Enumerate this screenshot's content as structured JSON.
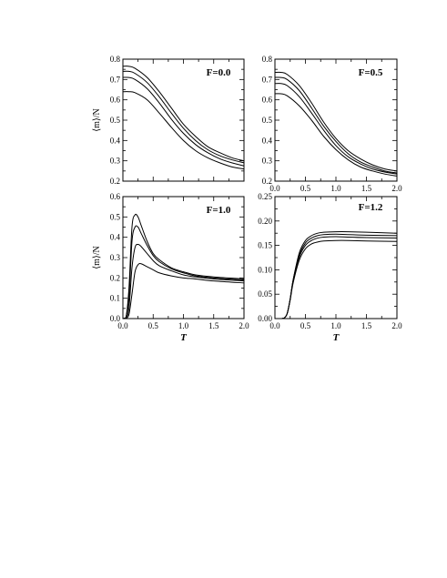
{
  "chart_data": [
    {
      "type": "line",
      "title": "F=0.0",
      "xlabel": "",
      "ylabel": "⟨m⟩/N",
      "xlim": [
        0,
        2
      ],
      "ylim": [
        0.2,
        0.8
      ],
      "xticks": [
        "0.0",
        "0.5",
        "1.0",
        "1.5",
        "2.0"
      ],
      "yticks": [
        "0.2",
        "0.3",
        "0.4",
        "0.5",
        "0.6",
        "0.7",
        "0.8"
      ],
      "show_xticklabels": false,
      "series": [
        {
          "x": [
            0,
            0.1,
            0.2,
            0.4,
            0.6,
            0.8,
            1.0,
            1.2,
            1.4,
            1.6,
            1.8,
            2.0
          ],
          "values": [
            0.765,
            0.765,
            0.755,
            0.71,
            0.64,
            0.56,
            0.48,
            0.42,
            0.37,
            0.34,
            0.315,
            0.3
          ]
        },
        {
          "x": [
            0,
            0.1,
            0.2,
            0.4,
            0.6,
            0.8,
            1.0,
            1.2,
            1.4,
            1.6,
            1.8,
            2.0
          ],
          "values": [
            0.74,
            0.74,
            0.73,
            0.685,
            0.615,
            0.535,
            0.46,
            0.4,
            0.355,
            0.325,
            0.305,
            0.29
          ]
        },
        {
          "x": [
            0,
            0.1,
            0.2,
            0.4,
            0.6,
            0.8,
            1.0,
            1.2,
            1.4,
            1.6,
            1.8,
            2.0
          ],
          "values": [
            0.71,
            0.71,
            0.7,
            0.655,
            0.585,
            0.505,
            0.435,
            0.38,
            0.34,
            0.31,
            0.29,
            0.275
          ]
        },
        {
          "x": [
            0,
            0.1,
            0.2,
            0.4,
            0.6,
            0.8,
            1.0,
            1.2,
            1.4,
            1.6,
            1.8,
            2.0
          ],
          "values": [
            0.64,
            0.64,
            0.635,
            0.6,
            0.535,
            0.465,
            0.4,
            0.35,
            0.315,
            0.29,
            0.27,
            0.26
          ]
        }
      ]
    },
    {
      "type": "line",
      "title": "F=0.5",
      "xlabel": "",
      "ylabel": "",
      "xlim": [
        0,
        2
      ],
      "ylim": [
        0.2,
        0.8
      ],
      "xticks": [
        "0.0",
        "0.5",
        "1.0",
        "1.5",
        "2.0"
      ],
      "yticks": [
        "0.2",
        "0.3",
        "0.4",
        "0.5",
        "0.6",
        "0.7",
        "0.8"
      ],
      "show_xticklabels": true,
      "series": [
        {
          "x": [
            0,
            0.1,
            0.2,
            0.4,
            0.6,
            0.8,
            1.0,
            1.2,
            1.4,
            1.6,
            1.8,
            2.0
          ],
          "values": [
            0.735,
            0.735,
            0.725,
            0.67,
            0.585,
            0.49,
            0.41,
            0.35,
            0.31,
            0.28,
            0.26,
            0.25
          ]
        },
        {
          "x": [
            0,
            0.1,
            0.2,
            0.4,
            0.6,
            0.8,
            1.0,
            1.2,
            1.4,
            1.6,
            1.8,
            2.0
          ],
          "values": [
            0.71,
            0.71,
            0.7,
            0.645,
            0.56,
            0.47,
            0.395,
            0.335,
            0.295,
            0.27,
            0.25,
            0.24
          ]
        },
        {
          "x": [
            0,
            0.1,
            0.2,
            0.4,
            0.6,
            0.8,
            1.0,
            1.2,
            1.4,
            1.6,
            1.8,
            2.0
          ],
          "values": [
            0.68,
            0.68,
            0.67,
            0.615,
            0.535,
            0.45,
            0.375,
            0.32,
            0.285,
            0.26,
            0.245,
            0.235
          ]
        },
        {
          "x": [
            0,
            0.1,
            0.2,
            0.4,
            0.6,
            0.8,
            1.0,
            1.2,
            1.4,
            1.6,
            1.8,
            2.0
          ],
          "values": [
            0.63,
            0.63,
            0.62,
            0.57,
            0.5,
            0.42,
            0.355,
            0.305,
            0.27,
            0.25,
            0.235,
            0.225
          ]
        }
      ]
    },
    {
      "type": "line",
      "title": "F=1.0",
      "xlabel": "T",
      "ylabel": "⟨m⟩/N",
      "xlim": [
        0,
        2
      ],
      "ylim": [
        0,
        0.6
      ],
      "xticks": [
        "0.0",
        "0.5",
        "1.0",
        "1.5",
        "2.0"
      ],
      "yticks": [
        "0.0",
        "0.1",
        "0.2",
        "0.3",
        "0.4",
        "0.5",
        "0.6"
      ],
      "show_xticklabels": true,
      "series": [
        {
          "x": [
            0,
            0.05,
            0.1,
            0.15,
            0.2,
            0.25,
            0.3,
            0.4,
            0.5,
            0.6,
            0.8,
            1.0,
            1.2,
            1.5,
            2.0
          ],
          "values": [
            0,
            0.005,
            0.15,
            0.45,
            0.51,
            0.5,
            0.46,
            0.38,
            0.32,
            0.29,
            0.25,
            0.23,
            0.215,
            0.205,
            0.195
          ]
        },
        {
          "x": [
            0,
            0.05,
            0.1,
            0.15,
            0.2,
            0.25,
            0.3,
            0.4,
            0.5,
            0.6,
            0.8,
            1.0,
            1.2,
            1.5,
            2.0
          ],
          "values": [
            0,
            0.005,
            0.1,
            0.38,
            0.45,
            0.45,
            0.42,
            0.36,
            0.31,
            0.28,
            0.245,
            0.225,
            0.21,
            0.2,
            0.19
          ]
        },
        {
          "x": [
            0,
            0.05,
            0.1,
            0.15,
            0.2,
            0.25,
            0.3,
            0.4,
            0.5,
            0.6,
            0.8,
            1.0,
            1.2,
            1.5,
            2.0
          ],
          "values": [
            0,
            0.003,
            0.05,
            0.25,
            0.35,
            0.365,
            0.355,
            0.32,
            0.285,
            0.26,
            0.235,
            0.215,
            0.205,
            0.195,
            0.185
          ]
        },
        {
          "x": [
            0,
            0.05,
            0.1,
            0.15,
            0.2,
            0.25,
            0.3,
            0.4,
            0.5,
            0.6,
            0.8,
            1.0,
            1.2,
            1.5,
            2.0
          ],
          "values": [
            0,
            0.002,
            0.02,
            0.12,
            0.23,
            0.265,
            0.27,
            0.255,
            0.24,
            0.225,
            0.21,
            0.2,
            0.195,
            0.185,
            0.175
          ]
        }
      ]
    },
    {
      "type": "line",
      "title": "F=1.2",
      "xlabel": "T",
      "ylabel": "",
      "xlim": [
        0,
        2
      ],
      "ylim": [
        0,
        0.25
      ],
      "xticks": [
        "0.0",
        "0.5",
        "1.0",
        "1.5",
        "2.0"
      ],
      "yticks": [
        "0.00",
        "0.05",
        "0.10",
        "0.15",
        "0.20",
        "0.25"
      ],
      "show_xticklabels": true,
      "series": [
        {
          "x": [
            0,
            0.1,
            0.15,
            0.2,
            0.25,
            0.3,
            0.4,
            0.5,
            0.6,
            0.7,
            0.8,
            1.0,
            1.2,
            1.5,
            2.0
          ],
          "values": [
            0,
            0,
            0.001,
            0.01,
            0.04,
            0.08,
            0.135,
            0.16,
            0.17,
            0.175,
            0.177,
            0.178,
            0.178,
            0.177,
            0.175
          ]
        },
        {
          "x": [
            0,
            0.1,
            0.15,
            0.2,
            0.25,
            0.3,
            0.4,
            0.5,
            0.6,
            0.7,
            0.8,
            1.0,
            1.2,
            1.5,
            2.0
          ],
          "values": [
            0,
            0,
            0.001,
            0.01,
            0.04,
            0.08,
            0.13,
            0.155,
            0.165,
            0.17,
            0.172,
            0.173,
            0.172,
            0.171,
            0.17
          ]
        },
        {
          "x": [
            0,
            0.1,
            0.15,
            0.2,
            0.25,
            0.3,
            0.4,
            0.5,
            0.6,
            0.7,
            0.8,
            1.0,
            1.2,
            1.5,
            2.0
          ],
          "values": [
            0,
            0,
            0.001,
            0.01,
            0.04,
            0.078,
            0.126,
            0.15,
            0.16,
            0.165,
            0.167,
            0.168,
            0.167,
            0.166,
            0.165
          ]
        },
        {
          "x": [
            0,
            0.1,
            0.15,
            0.2,
            0.25,
            0.3,
            0.4,
            0.5,
            0.6,
            0.7,
            0.8,
            1.0,
            1.2,
            1.5,
            2.0
          ],
          "values": [
            0,
            0,
            0.001,
            0.01,
            0.038,
            0.074,
            0.12,
            0.143,
            0.153,
            0.157,
            0.159,
            0.16,
            0.16,
            0.159,
            0.158
          ]
        }
      ]
    }
  ]
}
